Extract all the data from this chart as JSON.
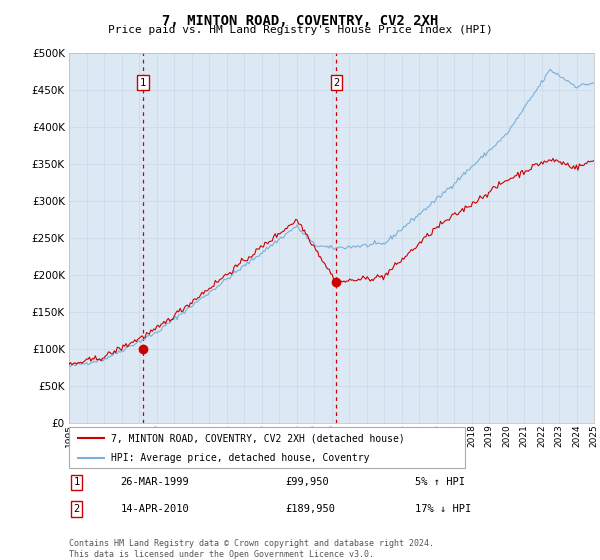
{
  "title": "7, MINTON ROAD, COVENTRY, CV2 2XH",
  "subtitle": "Price paid vs. HM Land Registry's House Price Index (HPI)",
  "legend_line1": "7, MINTON ROAD, COVENTRY, CV2 2XH (detached house)",
  "legend_line2": "HPI: Average price, detached house, Coventry",
  "annotation1": {
    "label": "1",
    "year": 1999.23,
    "price": 99950,
    "date_str": "26-MAR-1999",
    "price_str": "£99,950",
    "note": "5% ↑ HPI"
  },
  "annotation2": {
    "label": "2",
    "year": 2010.28,
    "price": 189950,
    "date_str": "14-APR-2010",
    "price_str": "£189,950",
    "note": "17% ↓ HPI"
  },
  "footer": "Contains HM Land Registry data © Crown copyright and database right 2024.\nThis data is licensed under the Open Government Licence v3.0.",
  "x_start_year": 1995,
  "x_end_year": 2025,
  "ylim": [
    0,
    500000
  ],
  "yticks": [
    0,
    50000,
    100000,
    150000,
    200000,
    250000,
    300000,
    350000,
    400000,
    450000,
    500000
  ],
  "background_color": "#ffffff",
  "plot_bg_color": "#dce9f5",
  "grid_color": "#c8d8e8",
  "hpi_color": "#7ab0d8",
  "price_color": "#cc0000",
  "dashed_line_color": "#cc0000"
}
